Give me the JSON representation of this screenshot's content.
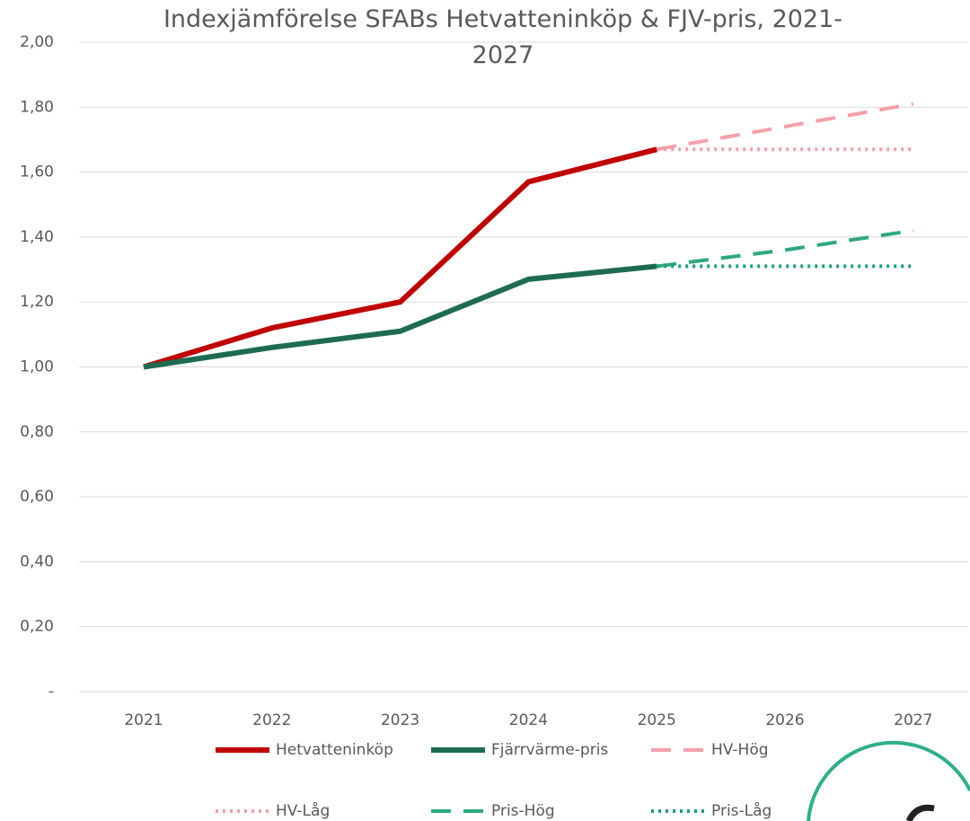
{
  "chart_data": {
    "type": "line",
    "title": "Indexjämförelse SFABs Hetvatteninköp & FJV-pris, 2021-2027",
    "categories": [
      "2021",
      "2022",
      "2023",
      "2024",
      "2025",
      "2026",
      "2027"
    ],
    "series": [
      {
        "name": "Hetvatteninköp",
        "color": "#c00000",
        "dash": "solid",
        "values": [
          1.0,
          1.12,
          1.2,
          1.57,
          1.67,
          null,
          null
        ]
      },
      {
        "name": "Fjärrvärme-pris",
        "color": "#1e6b52",
        "dash": "solid",
        "values": [
          1.0,
          1.06,
          1.11,
          1.27,
          1.31,
          null,
          null
        ]
      },
      {
        "name": "HV-Hög",
        "color": "#f4a0a8",
        "dash": "dashed",
        "values": [
          null,
          null,
          null,
          null,
          1.67,
          1.74,
          1.81
        ]
      },
      {
        "name": "HV-Låg",
        "color": "#f4a0a8",
        "dash": "dotted",
        "values": [
          null,
          null,
          null,
          null,
          1.67,
          1.67,
          1.67
        ]
      },
      {
        "name": "Pris-Hög",
        "color": "#2ea882",
        "dash": "dashed",
        "values": [
          null,
          null,
          null,
          null,
          1.31,
          1.36,
          1.42
        ]
      },
      {
        "name": "Pris-Låg",
        "color": "#1fa07a",
        "dash": "dotted",
        "values": [
          null,
          null,
          null,
          null,
          1.31,
          1.31,
          1.31
        ]
      }
    ],
    "ylim": [
      0,
      2
    ],
    "yticks": [
      {
        "value": 0,
        "label": "-"
      },
      {
        "value": 0.2,
        "label": "0,20"
      },
      {
        "value": 0.4,
        "label": "0,40"
      },
      {
        "value": 0.6,
        "label": "0,60"
      },
      {
        "value": 0.8,
        "label": "0,80"
      },
      {
        "value": 1.0,
        "label": "1,00"
      },
      {
        "value": 1.2,
        "label": "1,20"
      },
      {
        "value": 1.4,
        "label": "1,40"
      },
      {
        "value": 1.6,
        "label": "1,60"
      },
      {
        "value": 1.8,
        "label": "1,80"
      },
      {
        "value": 2.0,
        "label": "2,00"
      }
    ],
    "grid": true
  }
}
